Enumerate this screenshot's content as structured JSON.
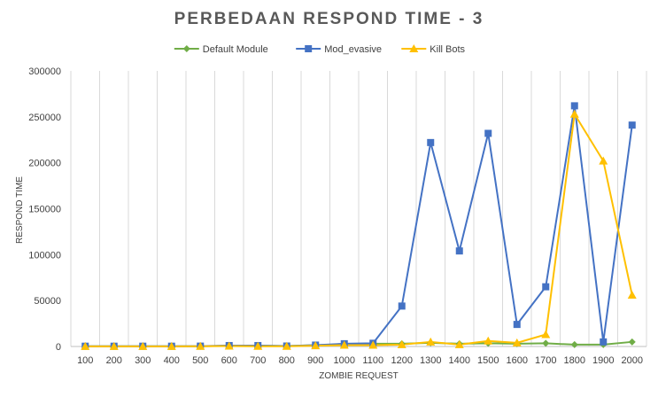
{
  "chart_data": {
    "type": "line",
    "title": "PERBEDAAN RESPOND TIME - 3",
    "xlabel": "ZOMBIE REQUEST",
    "ylabel": "RESPOND TIME",
    "categories": [
      "100",
      "200",
      "300",
      "400",
      "500",
      "600",
      "700",
      "800",
      "900",
      "1000",
      "1100",
      "1200",
      "1300",
      "1400",
      "1500",
      "1600",
      "1700",
      "1800",
      "1900",
      "2000"
    ],
    "ylim": [
      0,
      300000
    ],
    "yticks": [
      0,
      50000,
      100000,
      150000,
      200000,
      250000,
      300000
    ],
    "ytick_labels": [
      "0",
      "50000",
      "100000",
      "150000",
      "200000",
      "250000",
      "300000"
    ],
    "grid": "vertical",
    "legend": "top-center",
    "series": [
      {
        "name": "Default Module",
        "color": "#70AD47",
        "marker": "diamond",
        "values": [
          200,
          200,
          200,
          200,
          300,
          800,
          1000,
          500,
          1500,
          2000,
          3000,
          3000,
          4000,
          3000,
          3500,
          3000,
          3500,
          2000,
          2000,
          5000
        ]
      },
      {
        "name": "Mod_evasive",
        "color": "#4472C4",
        "marker": "square",
        "values": [
          300,
          300,
          300,
          300,
          400,
          1000,
          1000,
          500,
          1500,
          3000,
          3500,
          44000,
          222000,
          104000,
          232000,
          24000,
          65000,
          262000,
          5000,
          241000
        ]
      },
      {
        "name": "Kill Bots",
        "color": "#FFC000",
        "marker": "triangle",
        "values": [
          100,
          100,
          100,
          100,
          200,
          500,
          300,
          300,
          800,
          1500,
          1500,
          2000,
          5000,
          2000,
          6000,
          4000,
          13000,
          253000,
          202000,
          56000
        ]
      }
    ]
  }
}
